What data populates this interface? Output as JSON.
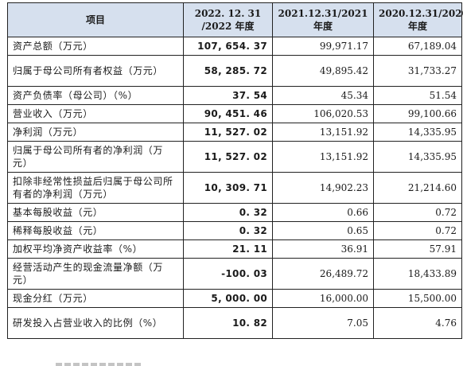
{
  "table": {
    "headers": [
      {
        "lines": [
          "项目"
        ]
      },
      {
        "lines": [
          "2022. 12. 31",
          "/2022 年度"
        ]
      },
      {
        "lines": [
          "2021.12.31/2021",
          "年度"
        ]
      },
      {
        "lines": [
          "2020.12.31/2020",
          "年度"
        ]
      }
    ],
    "rows": [
      {
        "label": "资产总额（万元）",
        "v2022": "107, 654. 37",
        "v2021": "99,971.17",
        "v2020": "67,189.04",
        "tall": false
      },
      {
        "label": "归属于母公司所有者权益（万元）",
        "v2022": "58, 285. 72",
        "v2021": "49,895.42",
        "v2020": "31,733.27",
        "tall": true
      },
      {
        "label": "资产负债率（母公司）（%）",
        "v2022": "37. 54",
        "v2021": "45.34",
        "v2020": "51.54",
        "tall": false
      },
      {
        "label": "营业收入（万元）",
        "v2022": "90, 451. 46",
        "v2021": "106,020.53",
        "v2020": "99,100.66",
        "tall": false
      },
      {
        "label": "净利润（万元）",
        "v2022": "11, 527. 02",
        "v2021": "13,151.92",
        "v2020": "14,335.95",
        "tall": false
      },
      {
        "label": "归属于母公司所有者的净利润（万元）",
        "v2022": "11, 527. 02",
        "v2021": "13,151.92",
        "v2020": "14,335.95",
        "tall": true
      },
      {
        "label": "扣除非经常性损益后归属于母公司所有者的净利润（万元）",
        "v2022": "10, 309. 71",
        "v2021": "14,902.23",
        "v2020": "21,214.60",
        "tall": true
      },
      {
        "label": "基本每股收益（元）",
        "v2022": "0. 32",
        "v2021": "0.66",
        "v2020": "0.72",
        "tall": false
      },
      {
        "label": "稀释每股收益（元）",
        "v2022": "0. 32",
        "v2021": "0.65",
        "v2020": "0.72",
        "tall": false
      },
      {
        "label": "加权平均净资产收益率（%）",
        "v2022": "21. 11",
        "v2021": "36.91",
        "v2020": "57.91",
        "tall": false
      },
      {
        "label": "经营活动产生的现金流量净额（万元）",
        "v2022": "-100. 03",
        "v2021": "26,489.72",
        "v2020": "18,433.89",
        "tall": true
      },
      {
        "label": "现金分红（万元）",
        "v2022": "5, 000. 00",
        "v2021": "16,000.00",
        "v2020": "15,500.00",
        "tall": false
      },
      {
        "label": "研发投入占营业收入的比例（%）",
        "v2022": "10. 82",
        "v2021": "7.05",
        "v2020": "4.76",
        "tall": true
      }
    ]
  }
}
